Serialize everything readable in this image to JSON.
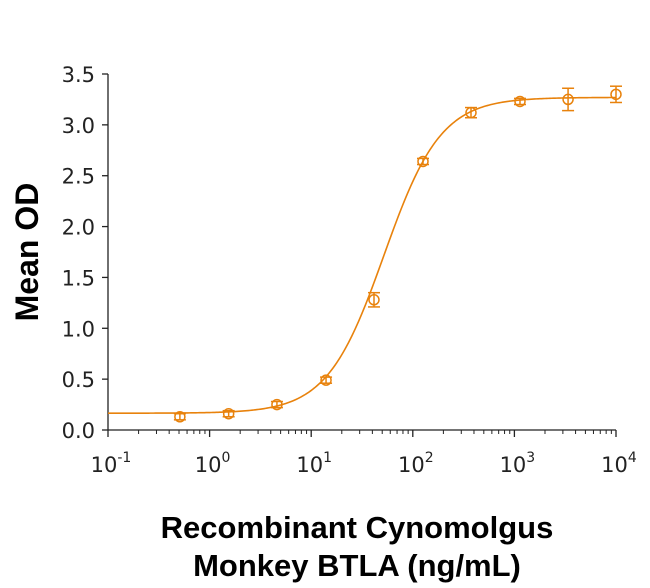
{
  "chart_data": {
    "type": "scatter",
    "title": "",
    "xlabel": [
      "Recombinant Cynomolgus",
      "Monkey BTLA (ng/mL)"
    ],
    "ylabel": "Mean OD",
    "xscale": "log",
    "xlim": [
      0.1,
      10000
    ],
    "ylim": [
      0.0,
      3.5
    ],
    "grid": false,
    "legend": "none",
    "color": "#E8820C",
    "x_ticks": [
      {
        "base": "10",
        "exp": "-1"
      },
      {
        "base": "10",
        "exp": "0"
      },
      {
        "base": "10",
        "exp": "1"
      },
      {
        "base": "10",
        "exp": "2"
      },
      {
        "base": "10",
        "exp": "3"
      },
      {
        "base": "10",
        "exp": "4"
      }
    ],
    "y_ticks": [
      "0.0",
      "0.5",
      "1.0",
      "1.5",
      "2.0",
      "2.5",
      "3.0",
      "3.5"
    ],
    "series": [
      {
        "name": "Mean OD",
        "points": [
          {
            "x": 0.51,
            "y": 0.13,
            "err": 0.03
          },
          {
            "x": 1.54,
            "y": 0.16,
            "err": 0.03
          },
          {
            "x": 4.6,
            "y": 0.25,
            "err": 0.03
          },
          {
            "x": 14.0,
            "y": 0.49,
            "err": 0.03
          },
          {
            "x": 41.5,
            "y": 1.28,
            "err": 0.07
          },
          {
            "x": 126,
            "y": 2.64,
            "err": 0.03
          },
          {
            "x": 374,
            "y": 3.12,
            "err": 0.05
          },
          {
            "x": 1135,
            "y": 3.23,
            "err": 0.03
          },
          {
            "x": 3375,
            "y": 3.25,
            "err": 0.11
          },
          {
            "x": 10000,
            "y": 3.3,
            "err": 0.08
          }
        ],
        "fit": {
          "model": "4PL",
          "bottom": 0.165,
          "top": 3.27,
          "ec50": 52,
          "hill": 1.55
        }
      }
    ]
  }
}
